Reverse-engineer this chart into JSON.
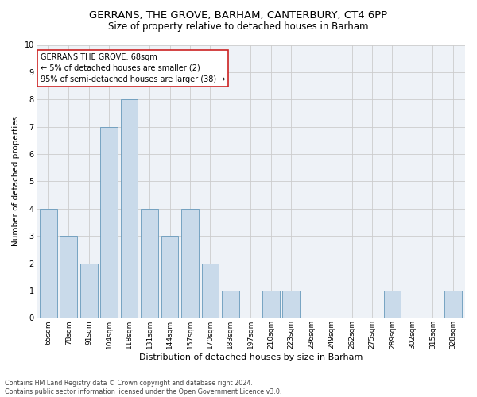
{
  "title1": "GERRANS, THE GROVE, BARHAM, CANTERBURY, CT4 6PP",
  "title2": "Size of property relative to detached houses in Barham",
  "xlabel": "Distribution of detached houses by size in Barham",
  "ylabel": "Number of detached properties",
  "categories": [
    "65sqm",
    "78sqm",
    "91sqm",
    "104sqm",
    "118sqm",
    "131sqm",
    "144sqm",
    "157sqm",
    "170sqm",
    "183sqm",
    "197sqm",
    "210sqm",
    "223sqm",
    "236sqm",
    "249sqm",
    "262sqm",
    "275sqm",
    "289sqm",
    "302sqm",
    "315sqm",
    "328sqm"
  ],
  "values": [
    4,
    3,
    2,
    7,
    8,
    4,
    3,
    4,
    2,
    1,
    0,
    1,
    1,
    0,
    0,
    0,
    0,
    1,
    0,
    0,
    1
  ],
  "bar_color": "#c9daea",
  "bar_edge_color": "#6699bb",
  "annotation_line1": "GERRANS THE GROVE: 68sqm",
  "annotation_line2": "← 5% of detached houses are smaller (2)",
  "annotation_line3": "95% of semi-detached houses are larger (38) →",
  "annotation_box_facecolor": "white",
  "annotation_box_edgecolor": "#cc2222",
  "ylim": [
    0,
    10
  ],
  "yticks": [
    0,
    1,
    2,
    3,
    4,
    5,
    6,
    7,
    8,
    9,
    10
  ],
  "grid_color": "#cccccc",
  "plot_bg_color": "#eef2f7",
  "footer1": "Contains HM Land Registry data © Crown copyright and database right 2024.",
  "footer2": "Contains public sector information licensed under the Open Government Licence v3.0.",
  "title1_fontsize": 9.5,
  "title2_fontsize": 8.5,
  "xlabel_fontsize": 8,
  "ylabel_fontsize": 7.5,
  "tick_fontsize": 6.5,
  "ann_fontsize": 7,
  "footer_fontsize": 5.8
}
